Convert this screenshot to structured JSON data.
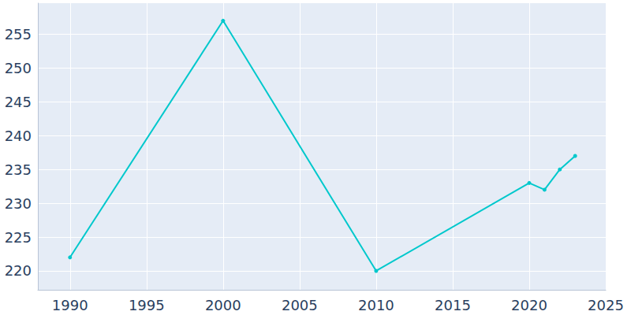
{
  "chart_data": {
    "type": "line",
    "x": [
      1990,
      2000,
      2010,
      2020,
      2021,
      2022,
      2023
    ],
    "values": [
      222,
      257,
      220,
      233,
      232,
      235,
      237
    ],
    "color": "#00c8cc",
    "marker": "circle",
    "xlim": [
      1987.9,
      2025
    ],
    "xticks": [
      1990,
      1995,
      2000,
      2005,
      2010,
      2015,
      2020,
      2025
    ],
    "ylim": [
      217.2,
      259.6
    ],
    "yticks": [
      220,
      225,
      230,
      235,
      240,
      245,
      250,
      255
    ],
    "grid": true
  }
}
